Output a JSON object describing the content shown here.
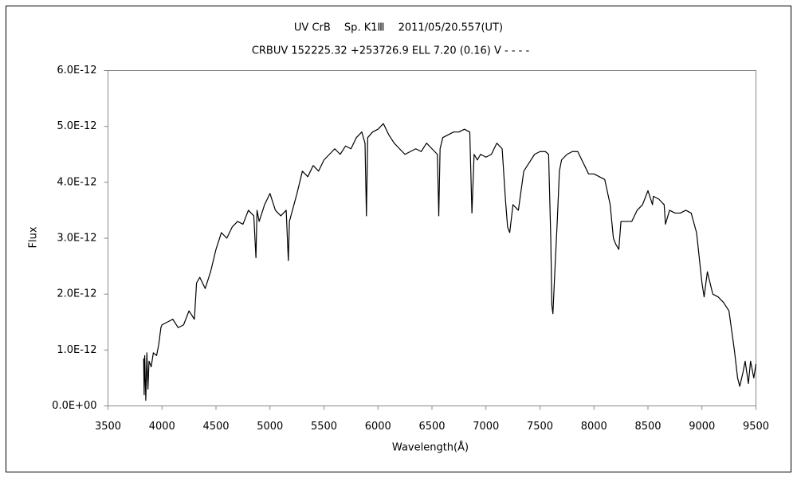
{
  "chart_data": {
    "type": "line",
    "title": "UV CrB　 Sp. K1Ⅲ　 2011/05/20.557(UT)",
    "subtitle": "CRBUV 152225.32 +253726.9 ELL 7.20 (0.16) V - - - -",
    "x_label": "Wavelength(Å)",
    "y_label": "Flux",
    "xlim": [
      3500,
      9500
    ],
    "xticks": [
      3500,
      4000,
      4500,
      5000,
      5500,
      6000,
      6500,
      7000,
      7500,
      8000,
      8500,
      9000,
      9500
    ],
    "ylim": [
      0,
      6e-12
    ],
    "yticks": [
      {
        "value": 0,
        "label": "0.0E+00"
      },
      {
        "value": 1e-12,
        "label": "1.0E-12"
      },
      {
        "value": 2e-12,
        "label": "2.0E-12"
      },
      {
        "value": 3e-12,
        "label": "3.0E-12"
      },
      {
        "value": 4e-12,
        "label": "4.0E-12"
      },
      {
        "value": 5e-12,
        "label": "5.0E-12"
      },
      {
        "value": 6e-12,
        "label": "6.0E-12"
      }
    ],
    "grid": false,
    "series": [
      {
        "color": "#000000",
        "x": [
          3830,
          3835,
          3840,
          3850,
          3860,
          3870,
          3880,
          3900,
          3920,
          3950,
          3970,
          3990,
          4000,
          4050,
          4100,
          4150,
          4200,
          4250,
          4300,
          4320,
          4350,
          4400,
          4450,
          4500,
          4550,
          4600,
          4650,
          4700,
          4750,
          4800,
          4850,
          4870,
          4880,
          4900,
          4950,
          5000,
          5050,
          5100,
          5150,
          5170,
          5180,
          5250,
          5300,
          5350,
          5400,
          5450,
          5500,
          5550,
          5600,
          5650,
          5700,
          5750,
          5800,
          5850,
          5880,
          5893,
          5905,
          5950,
          6000,
          6050,
          6100,
          6150,
          6200,
          6250,
          6300,
          6350,
          6400,
          6450,
          6500,
          6550,
          6563,
          6575,
          6600,
          6650,
          6700,
          6750,
          6800,
          6850,
          6870,
          6890,
          6920,
          6950,
          7000,
          7050,
          7100,
          7150,
          7180,
          7200,
          7220,
          7250,
          7300,
          7350,
          7400,
          7450,
          7500,
          7550,
          7580,
          7600,
          7610,
          7620,
          7640,
          7660,
          7680,
          7700,
          7750,
          7800,
          7850,
          7900,
          7950,
          8000,
          8050,
          8100,
          8150,
          8180,
          8200,
          8230,
          8250,
          8300,
          8350,
          8400,
          8450,
          8500,
          8542,
          8550,
          8600,
          8650,
          8662,
          8700,
          8750,
          8800,
          8850,
          8900,
          8950,
          9000,
          9020,
          9050,
          9100,
          9150,
          9200,
          9250,
          9300,
          9330,
          9350,
          9380,
          9400,
          9430,
          9450,
          9480,
          9500
        ],
        "values": [
          8.5e-13,
          2e-13,
          9e-13,
          1e-13,
          9.5e-13,
          3e-13,
          8e-13,
          7e-13,
          9.5e-13,
          9e-13,
          1.1e-12,
          1.4e-12,
          1.45e-12,
          1.5e-12,
          1.55e-12,
          1.4e-12,
          1.45e-12,
          1.7e-12,
          1.55e-12,
          2.2e-12,
          2.3e-12,
          2.1e-12,
          2.4e-12,
          2.8e-12,
          3.1e-12,
          3e-12,
          3.2e-12,
          3.3e-12,
          3.25e-12,
          3.5e-12,
          3.4e-12,
          2.65e-12,
          3.5e-12,
          3.3e-12,
          3.6e-12,
          3.8e-12,
          3.5e-12,
          3.4e-12,
          3.5e-12,
          2.6e-12,
          3.3e-12,
          3.8e-12,
          4.2e-12,
          4.1e-12,
          4.3e-12,
          4.2e-12,
          4.4e-12,
          4.5e-12,
          4.6e-12,
          4.5e-12,
          4.65e-12,
          4.6e-12,
          4.8e-12,
          4.9e-12,
          4.7e-12,
          3.4e-12,
          4.8e-12,
          4.9e-12,
          4.95e-12,
          5.05e-12,
          4.85e-12,
          4.7e-12,
          4.6e-12,
          4.5e-12,
          4.55e-12,
          4.6e-12,
          4.55e-12,
          4.7e-12,
          4.6e-12,
          4.5e-12,
          3.4e-12,
          4.6e-12,
          4.8e-12,
          4.85e-12,
          4.9e-12,
          4.9e-12,
          4.95e-12,
          4.9e-12,
          3.45e-12,
          4.5e-12,
          4.4e-12,
          4.5e-12,
          4.45e-12,
          4.5e-12,
          4.7e-12,
          4.6e-12,
          3.7e-12,
          3.2e-12,
          3.1e-12,
          3.6e-12,
          3.5e-12,
          4.2e-12,
          4.35e-12,
          4.5e-12,
          4.55e-12,
          4.55e-12,
          4.5e-12,
          3e-12,
          1.8e-12,
          1.65e-12,
          2.5e-12,
          3.3e-12,
          4.2e-12,
          4.4e-12,
          4.5e-12,
          4.55e-12,
          4.55e-12,
          4.35e-12,
          4.15e-12,
          4.15e-12,
          4.1e-12,
          4.05e-12,
          3.6e-12,
          3e-12,
          2.9e-12,
          2.8e-12,
          3.3e-12,
          3.3e-12,
          3.3e-12,
          3.5e-12,
          3.6e-12,
          3.85e-12,
          3.6e-12,
          3.75e-12,
          3.7e-12,
          3.6e-12,
          3.25e-12,
          3.5e-12,
          3.45e-12,
          3.45e-12,
          3.5e-12,
          3.45e-12,
          3.1e-12,
          2.2e-12,
          1.95e-12,
          2.4e-12,
          2e-12,
          1.95e-12,
          1.85e-12,
          1.7e-12,
          1e-12,
          5e-13,
          3.5e-13,
          6e-13,
          8e-13,
          4e-13,
          8e-13,
          5e-13,
          7.5e-13
        ]
      }
    ]
  }
}
